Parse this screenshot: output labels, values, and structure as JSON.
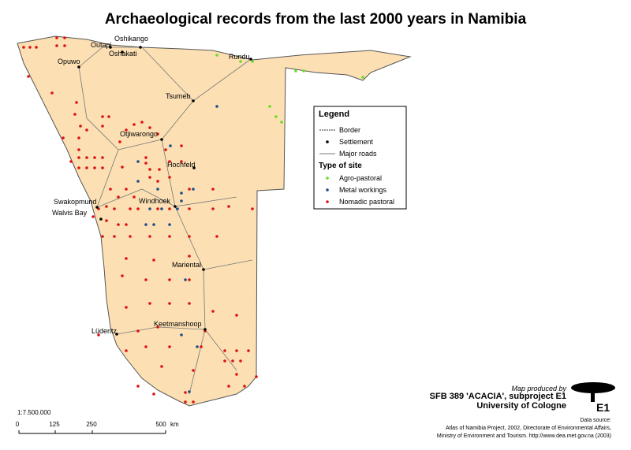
{
  "title": "Archaeological records from the last 2000 years in Namibia",
  "places": [
    "Outapi",
    "Oshikango",
    "Oshakati",
    "Opuwo",
    "Rundu",
    "Tsumeb",
    "Otjiwarongo",
    "Hochfeld",
    "Swakopmund",
    "Walvis Bay",
    "Windhoek",
    "Mariental",
    "Keetmanshoop",
    "Lüderitz"
  ],
  "legend": {
    "title": "Legend",
    "items": [
      "Border",
      "Settlement",
      "Major roads"
    ],
    "site_title": "Type of site",
    "sites": [
      "Agro-pastoral",
      "Metal workings",
      "Nomadic pastoral"
    ]
  },
  "credits": {
    "produced": "Map produced by",
    "project": "SFB 389 'ACACIA', subproject E1",
    "university": "University of Cologne",
    "logo": "E1",
    "source_title": "Data source:",
    "source_lines": [
      "Atlas of Namibia Project, 2002, Directorate of Environmental Affairs,",
      "Ministry of Environment and Tourism. http://www.dea.met.gov.na (2003)"
    ]
  },
  "scale": {
    "ratio": "1:7.500.000",
    "labels": [
      "0",
      "125",
      "250",
      "500",
      "km"
    ]
  }
}
